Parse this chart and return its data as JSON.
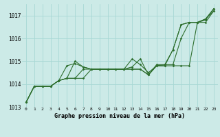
{
  "x": [
    0,
    1,
    2,
    3,
    4,
    5,
    6,
    7,
    8,
    9,
    10,
    11,
    12,
    13,
    14,
    15,
    16,
    17,
    18,
    19,
    20,
    21,
    22,
    23
  ],
  "line1": [
    1013.2,
    1013.9,
    1013.9,
    1013.9,
    1014.15,
    1014.8,
    1014.9,
    1014.75,
    1014.65,
    1014.65,
    1014.65,
    1014.65,
    1014.65,
    1015.1,
    1014.85,
    1014.5,
    1014.8,
    1014.85,
    1015.5,
    1016.6,
    1016.7,
    1016.7,
    1016.8,
    1017.3
  ],
  "line2": [
    1013.2,
    1013.9,
    1013.9,
    1013.9,
    1014.15,
    1014.25,
    1014.25,
    1014.65,
    1014.65,
    1014.65,
    1014.65,
    1014.65,
    1014.65,
    1014.65,
    1014.65,
    1014.4,
    1014.8,
    1014.8,
    1015.5,
    1016.6,
    1016.7,
    1016.7,
    1016.85,
    1017.3
  ],
  "line3": [
    1013.2,
    1013.9,
    1013.9,
    1013.9,
    1014.15,
    1014.25,
    1015.0,
    1014.75,
    1014.65,
    1014.65,
    1014.65,
    1014.65,
    1014.65,
    1014.75,
    1015.1,
    1014.4,
    1014.85,
    1014.85,
    1014.85,
    1016.0,
    1016.7,
    1016.7,
    1016.85,
    1017.2
  ],
  "line4": [
    1013.2,
    1013.9,
    1013.9,
    1013.9,
    1014.15,
    1014.25,
    1014.25,
    1014.25,
    1014.65,
    1014.65,
    1014.65,
    1014.65,
    1014.65,
    1014.65,
    1014.65,
    1014.4,
    1014.8,
    1014.8,
    1014.8,
    1014.8,
    1014.8,
    1016.7,
    1016.7,
    1017.2
  ],
  "bg_color": "#cceae7",
  "grid_color": "#a8d8d4",
  "line_color": "#2d6e2d",
  "xlabel": "Graphe pression niveau de la mer (hPa)",
  "ylim": [
    1013.0,
    1017.5
  ],
  "yticks": [
    1013,
    1014,
    1015,
    1016,
    1017
  ],
  "xticks": [
    0,
    1,
    2,
    3,
    4,
    5,
    6,
    7,
    8,
    9,
    10,
    11,
    12,
    13,
    14,
    15,
    16,
    17,
    18,
    19,
    20,
    21,
    22,
    23
  ],
  "fig_width": 3.2,
  "fig_height": 2.0,
  "dpi": 100
}
